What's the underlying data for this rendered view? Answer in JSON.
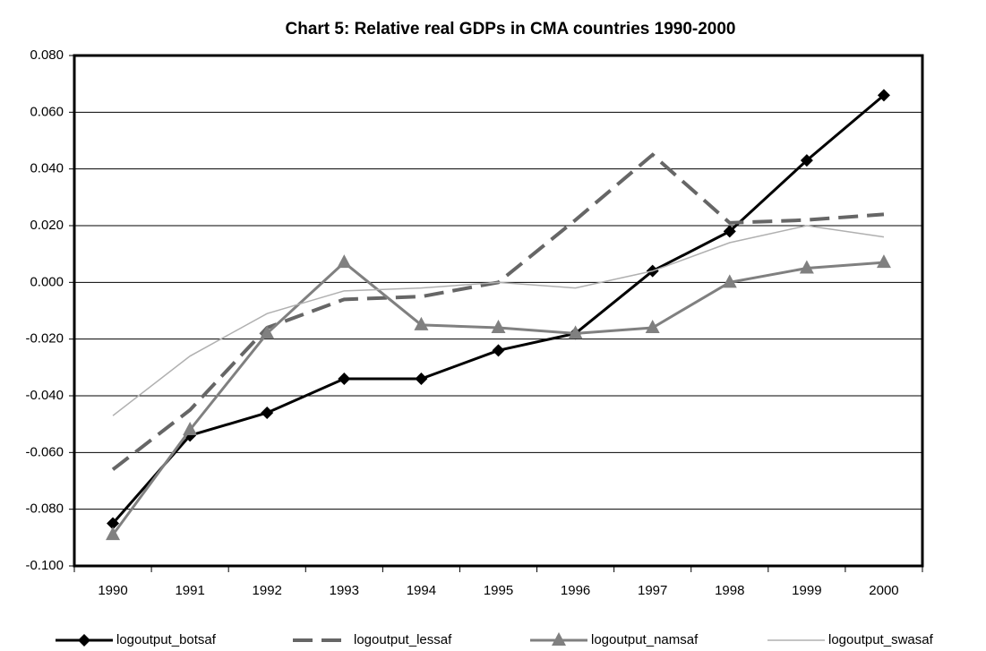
{
  "chart_data": {
    "type": "line",
    "title": "Chart 5: Relative real GDPs in CMA countries 1990-2000",
    "categories": [
      "1990",
      "1991",
      "1992",
      "1993",
      "1994",
      "1995",
      "1996",
      "1997",
      "1998",
      "1999",
      "2000"
    ],
    "ylim": [
      -0.1,
      0.08
    ],
    "yticks": [
      {
        "value": -0.1,
        "label": "-0.100"
      },
      {
        "value": -0.08,
        "label": "-0.080"
      },
      {
        "value": -0.06,
        "label": "-0.060"
      },
      {
        "value": -0.04,
        "label": "-0.040"
      },
      {
        "value": -0.02,
        "label": "-0.020"
      },
      {
        "value": 0,
        "label": "0.000"
      },
      {
        "value": 0.02,
        "label": "0.020"
      },
      {
        "value": 0.04,
        "label": "0.040"
      },
      {
        "value": 0.06,
        "label": "0.060"
      },
      {
        "value": 0.08,
        "label": "0.080"
      }
    ],
    "grid": true,
    "legend": "bottom",
    "series": [
      {
        "name": "logoutput_botsaf",
        "color": "#000000",
        "width": 3,
        "dash": false,
        "marker": "diamond",
        "values": [
          -0.085,
          -0.054,
          -0.046,
          -0.034,
          -0.034,
          -0.024,
          -0.018,
          0.004,
          0.018,
          0.043,
          0.066
        ]
      },
      {
        "name": "logoutput_lessaf",
        "color": "#666666",
        "width": 4,
        "dash": true,
        "marker": "none",
        "values": [
          -0.066,
          -0.045,
          -0.016,
          -0.006,
          -0.005,
          0.0,
          0.022,
          0.045,
          0.021,
          0.022,
          0.024
        ]
      },
      {
        "name": "logoutput_namsaf",
        "color": "#808080",
        "width": 3,
        "dash": false,
        "marker": "triangle",
        "values": [
          -0.089,
          -0.052,
          -0.018,
          0.007,
          -0.015,
          -0.016,
          -0.018,
          -0.016,
          0.0,
          0.005,
          0.007
        ]
      },
      {
        "name": "logoutput_swasaf",
        "color": "#b0b0b0",
        "width": 1.5,
        "dash": false,
        "marker": "none",
        "values": [
          -0.047,
          -0.026,
          -0.011,
          -0.003,
          -0.002,
          0.0,
          -0.002,
          0.004,
          0.014,
          0.02,
          0.016
        ]
      }
    ]
  }
}
